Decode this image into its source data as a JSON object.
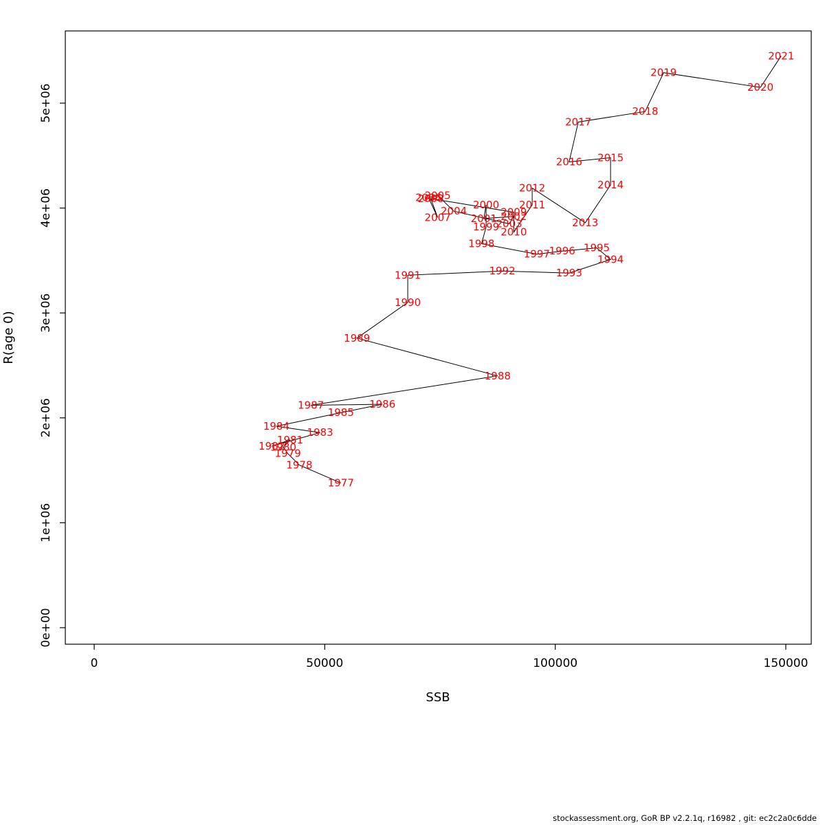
{
  "figure": {
    "xlabel": "SSB",
    "ylabel": "R(age 0)",
    "footer": "stockassessment.org, GoR BP v2.2.1q, r16982 , git: ec2c2a0c6dde"
  },
  "chart_data": {
    "type": "scatter",
    "title": "",
    "xlabel": "SSB",
    "ylabel": "R(age 0)",
    "xlim": [
      0,
      150000
    ],
    "ylim": [
      0,
      5000000
    ],
    "grid": false,
    "legend_position": "none",
    "line_color": "#000000",
    "label_color": "#ff0000",
    "x_ticks": [
      {
        "value": 0,
        "label": "0"
      },
      {
        "value": 50000,
        "label": "50000"
      },
      {
        "value": 100000,
        "label": "100000"
      },
      {
        "value": 150000,
        "label": "150000"
      }
    ],
    "y_ticks": [
      {
        "value": 0,
        "label": "0e+00"
      },
      {
        "value": 1000000,
        "label": "1e+06"
      },
      {
        "value": 2000000,
        "label": "2e+06"
      },
      {
        "value": 3000000,
        "label": "3e+06"
      },
      {
        "value": 4000000,
        "label": "4e+06"
      },
      {
        "value": 5000000,
        "label": "5e+06"
      }
    ],
    "points": [
      {
        "year": "1977",
        "ssb": 53500,
        "recruitment": 1380000
      },
      {
        "year": "1978",
        "ssb": 44500,
        "recruitment": 1550000
      },
      {
        "year": "1979",
        "ssb": 42000,
        "recruitment": 1660000
      },
      {
        "year": "1980",
        "ssb": 41000,
        "recruitment": 1720000
      },
      {
        "year": "1981",
        "ssb": 42500,
        "recruitment": 1790000
      },
      {
        "year": "1982",
        "ssb": 38500,
        "recruitment": 1730000
      },
      {
        "year": "1983",
        "ssb": 49000,
        "recruitment": 1860000
      },
      {
        "year": "1984",
        "ssb": 39500,
        "recruitment": 1920000
      },
      {
        "year": "1985",
        "ssb": 53500,
        "recruitment": 2050000
      },
      {
        "year": "1986",
        "ssb": 62500,
        "recruitment": 2130000
      },
      {
        "year": "1987",
        "ssb": 47000,
        "recruitment": 2120000
      },
      {
        "year": "1988",
        "ssb": 87500,
        "recruitment": 2400000
      },
      {
        "year": "1989",
        "ssb": 57000,
        "recruitment": 2760000
      },
      {
        "year": "1990",
        "ssb": 68000,
        "recruitment": 3100000
      },
      {
        "year": "1991",
        "ssb": 68000,
        "recruitment": 3360000
      },
      {
        "year": "1992",
        "ssb": 88500,
        "recruitment": 3400000
      },
      {
        "year": "1993",
        "ssb": 103000,
        "recruitment": 3380000
      },
      {
        "year": "1994",
        "ssb": 112000,
        "recruitment": 3510000
      },
      {
        "year": "1995",
        "ssb": 109000,
        "recruitment": 3620000
      },
      {
        "year": "1996",
        "ssb": 101500,
        "recruitment": 3590000
      },
      {
        "year": "1997",
        "ssb": 96000,
        "recruitment": 3560000
      },
      {
        "year": "1998",
        "ssb": 84000,
        "recruitment": 3660000
      },
      {
        "year": "1999",
        "ssb": 85000,
        "recruitment": 3820000
      },
      {
        "year": "2000",
        "ssb": 85000,
        "recruitment": 4030000
      },
      {
        "year": "2001",
        "ssb": 84500,
        "recruitment": 3900000
      },
      {
        "year": "2002",
        "ssb": 91000,
        "recruitment": 3920000
      },
      {
        "year": "2003",
        "ssb": 90000,
        "recruitment": 3850000
      },
      {
        "year": "2004",
        "ssb": 78000,
        "recruitment": 3970000
      },
      {
        "year": "2005",
        "ssb": 74500,
        "recruitment": 4120000
      },
      {
        "year": "2006",
        "ssb": 72500,
        "recruitment": 4100000
      },
      {
        "year": "2007",
        "ssb": 74500,
        "recruitment": 3910000
      },
      {
        "year": "2008",
        "ssb": 73000,
        "recruitment": 4090000
      },
      {
        "year": "2009",
        "ssb": 91000,
        "recruitment": 3960000
      },
      {
        "year": "2010",
        "ssb": 91000,
        "recruitment": 3770000
      },
      {
        "year": "2011",
        "ssb": 95000,
        "recruitment": 4030000
      },
      {
        "year": "2012",
        "ssb": 95000,
        "recruitment": 4190000
      },
      {
        "year": "2013",
        "ssb": 106500,
        "recruitment": 3860000
      },
      {
        "year": "2014",
        "ssb": 112000,
        "recruitment": 4220000
      },
      {
        "year": "2015",
        "ssb": 112000,
        "recruitment": 4480000
      },
      {
        "year": "2016",
        "ssb": 103000,
        "recruitment": 4440000
      },
      {
        "year": "2017",
        "ssb": 105000,
        "recruitment": 4820000
      },
      {
        "year": "2018",
        "ssb": 119500,
        "recruitment": 4920000
      },
      {
        "year": "2019",
        "ssb": 123500,
        "recruitment": 5290000
      },
      {
        "year": "2020",
        "ssb": 144500,
        "recruitment": 5150000
      },
      {
        "year": "2021",
        "ssb": 149000,
        "recruitment": 5450000
      }
    ]
  }
}
